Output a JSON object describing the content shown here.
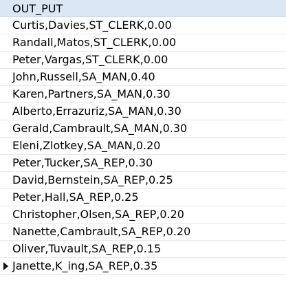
{
  "grid": {
    "column_header": "OUT_PUT",
    "current_row_marker": "row-pointer-icon",
    "rows": [
      "Curtis,Davies,ST_CLERK,0.00",
      "Randall,Matos,ST_CLERK,0.00",
      "Peter,Vargas,ST_CLERK,0.00",
      "John,Russell,SA_MAN,0.40",
      "Karen,Partners,SA_MAN,0.30",
      "Alberto,Errazuriz,SA_MAN,0.30",
      "Gerald,Cambrault,SA_MAN,0.30",
      "Eleni,Zlotkey,SA_MAN,0.20",
      "Peter,Tucker,SA_REP,0.30",
      "David,Bernstein,SA_REP,0.25",
      "Peter,Hall,SA_REP,0.25",
      "Christopher,Olsen,SA_REP,0.20",
      "Nanette,Cambrault,SA_REP,0.20",
      "Oliver,Tuvault,SA_REP,0.15",
      "Janette,K_ing,SA_REP,0.35"
    ],
    "current_row_index": 14
  }
}
